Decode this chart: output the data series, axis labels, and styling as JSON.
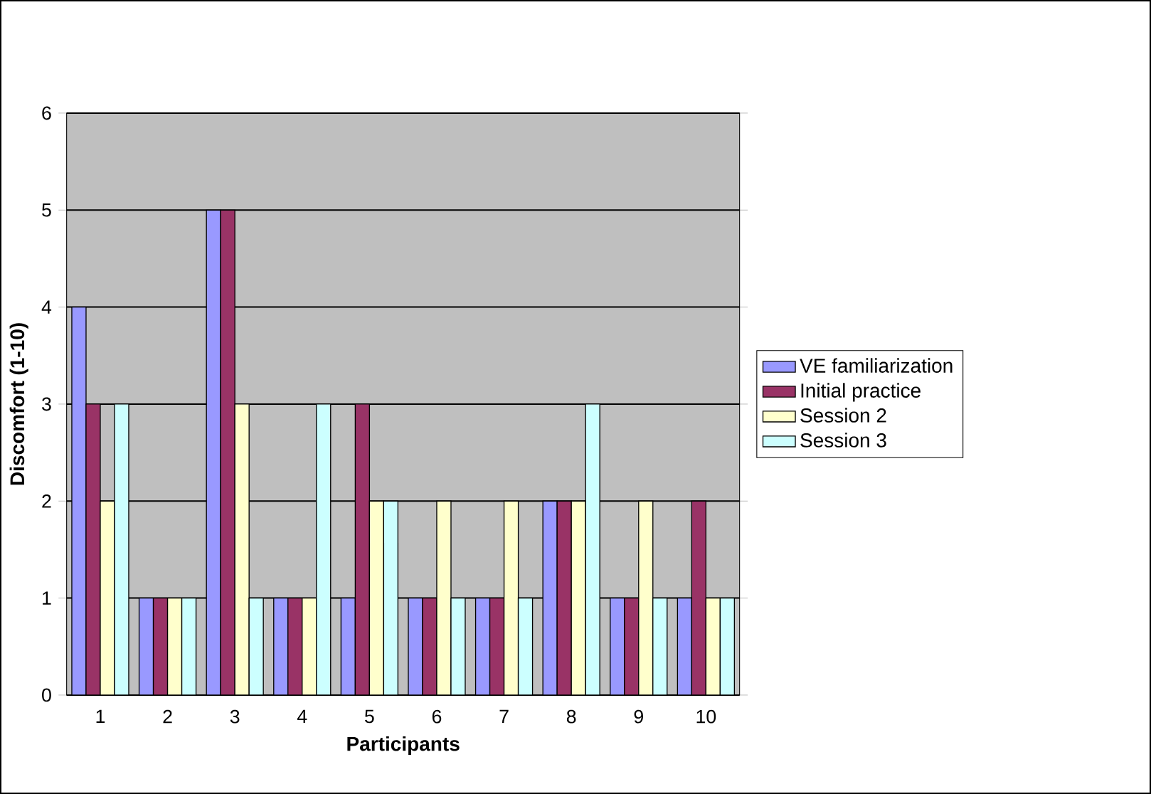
{
  "chart_data": {
    "type": "bar",
    "xlabel": "Participants",
    "ylabel": "Discomfort (1-10)",
    "categories": [
      "1",
      "2",
      "3",
      "4",
      "5",
      "6",
      "7",
      "8",
      "9",
      "10"
    ],
    "series": [
      {
        "name": "VE familiarization",
        "color": "#9999ff",
        "values": [
          4,
          1,
          5,
          1,
          1,
          1,
          1,
          2,
          1,
          1
        ]
      },
      {
        "name": "Initial practice",
        "color": "#993366",
        "values": [
          3,
          1,
          5,
          1,
          3,
          1,
          1,
          2,
          1,
          2
        ]
      },
      {
        "name": "Session 2",
        "color": "#ffffcc",
        "values": [
          2,
          1,
          3,
          1,
          2,
          2,
          2,
          2,
          2,
          1
        ]
      },
      {
        "name": "Session 3",
        "color": "#ccffff",
        "values": [
          3,
          1,
          1,
          3,
          2,
          1,
          1,
          3,
          1,
          1
        ]
      }
    ],
    "ylim": [
      0,
      6
    ],
    "yticks": [
      0,
      1,
      2,
      3,
      4,
      5,
      6
    ],
    "grid": "y",
    "legend": "right"
  }
}
